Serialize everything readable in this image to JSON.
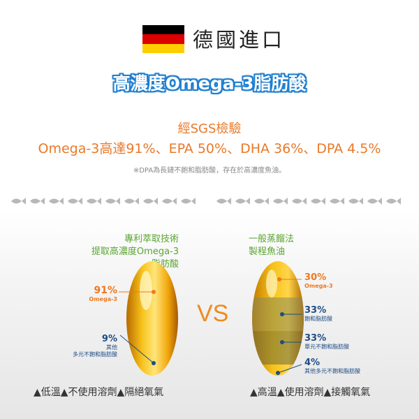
{
  "header": {
    "title": "德國進口",
    "banner": "高濃度Omega-3脂肪酸",
    "sgs": "經SGS檢驗",
    "stats": "Omega-3高達91%、EPA 50%、DHA 36%、DPA 4.5%",
    "note": "※DPA為長鏈不飽和脂肪酸，存在於高濃度魚油。"
  },
  "flag_colors": [
    "#000000",
    "#dd0000",
    "#ffce00"
  ],
  "left": {
    "heading_line1": "專利萃取技術",
    "heading_line2": "提取高濃度Omega-3脂肪酸",
    "omega_pct": "91%",
    "omega_label": "Omega-3",
    "other_pct": "9%",
    "other_label1": "其他",
    "other_label2": "多元不飽和脂肪酸",
    "features": "▲低溫▲不使用溶劑▲隔絕氧氣"
  },
  "vs": "VS",
  "right": {
    "heading_line1": "一般蒸餾法",
    "heading_line2": "製程魚油",
    "omega_pct": "30%",
    "omega_label": "Omega-3",
    "sat_pct": "33%",
    "sat_label": "飽和脂肪酸",
    "mono_pct": "33%",
    "mono_label": "單元不飽和脂肪酸",
    "other_pct": "4%",
    "other_label": "其他多元不飽和脂肪酸",
    "features": "▲高溫▲使用溶劑▲接觸氧氣"
  }
}
